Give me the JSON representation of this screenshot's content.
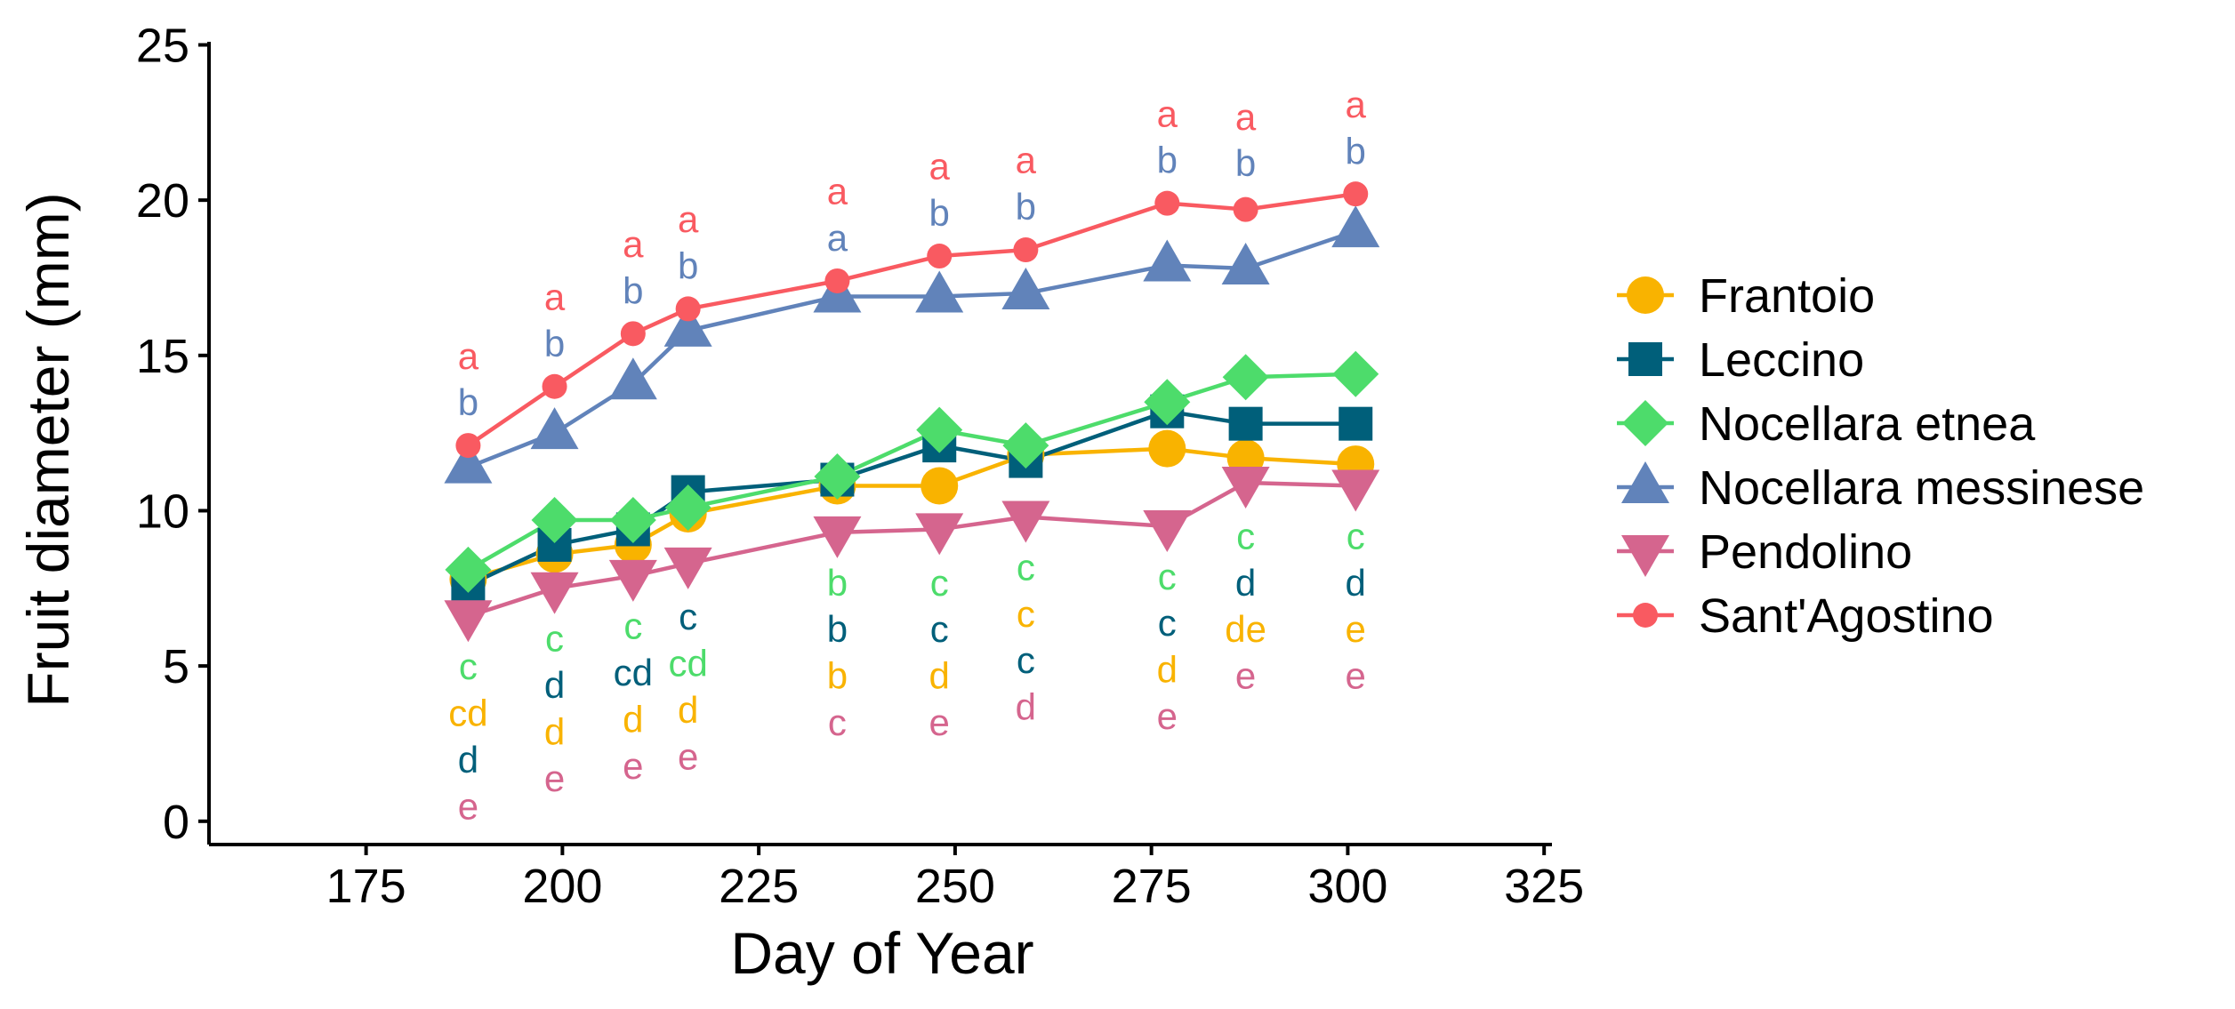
{
  "chart_data": {
    "type": "line",
    "xlabel": "Day of Year",
    "ylabel": "Fruit diameter (mm)",
    "xlim": [
      155,
      326
    ],
    "ylim": [
      -0.75,
      25.1
    ],
    "x_ticks": [
      "175",
      "200",
      "225",
      "250",
      "275",
      "300",
      "325"
    ],
    "y_ticks": [
      "0",
      "5",
      "10",
      "15",
      "20",
      "25"
    ],
    "grid": false,
    "legend_position": "right",
    "series": [
      {
        "name": "Frantoio",
        "color": "#F9B300",
        "marker": "circle",
        "x": [
          188,
          199,
          209,
          216,
          235,
          248,
          259,
          277,
          287,
          301
        ],
        "y": [
          7.8,
          8.6,
          8.9,
          9.9,
          10.8,
          10.8,
          11.8,
          12.0,
          11.7,
          11.5
        ]
      },
      {
        "name": "Leccino",
        "color": "#005F7A",
        "marker": "square",
        "x": [
          188,
          199,
          209,
          216,
          235,
          248,
          259,
          277,
          287,
          301
        ],
        "y": [
          7.6,
          8.9,
          9.4,
          10.6,
          11.0,
          12.1,
          11.6,
          13.2,
          12.8,
          12.8
        ]
      },
      {
        "name": "Nocellara etnea",
        "color": "#4DDC6B",
        "marker": "diamond",
        "x": [
          188,
          199,
          209,
          216,
          235,
          248,
          259,
          277,
          287,
          301
        ],
        "y": [
          8.1,
          9.7,
          9.7,
          10.1,
          11.1,
          12.6,
          12.1,
          13.5,
          14.3,
          14.4
        ]
      },
      {
        "name": "Nocellara messinese",
        "color": "#6183BA",
        "marker": "triangle-up",
        "x": [
          188,
          199,
          209,
          216,
          235,
          248,
          259,
          277,
          287,
          301
        ],
        "y": [
          11.4,
          12.5,
          14.1,
          15.8,
          16.9,
          16.9,
          17.0,
          17.9,
          17.8,
          19.0
        ]
      },
      {
        "name": "Pendolino",
        "color": "#D5658E",
        "marker": "triangle-down",
        "x": [
          188,
          199,
          209,
          216,
          235,
          248,
          259,
          277,
          287,
          301
        ],
        "y": [
          6.6,
          7.5,
          7.9,
          8.3,
          9.3,
          9.4,
          9.8,
          9.5,
          10.9,
          10.8
        ]
      },
      {
        "name": "Sant'Agostino",
        "color": "#F95A61",
        "marker": "circle-small",
        "x": [
          188,
          199,
          209,
          216,
          235,
          248,
          259,
          277,
          287,
          301
        ],
        "y": [
          12.1,
          14.0,
          15.7,
          16.5,
          17.4,
          18.2,
          18.4,
          19.9,
          19.7,
          20.2
        ]
      }
    ],
    "annotations": [
      {
        "x": 188,
        "y": 15.0,
        "text": "a",
        "series": "Sant'Agostino"
      },
      {
        "x": 188,
        "y": 13.5,
        "text": "b",
        "series": "Nocellara messinese"
      },
      {
        "x": 188,
        "y": 5.0,
        "text": "c",
        "series": "Nocellara etnea"
      },
      {
        "x": 188,
        "y": 3.5,
        "text": "cd",
        "series": "Frantoio"
      },
      {
        "x": 188,
        "y": 2.0,
        "text": "d",
        "series": "Leccino"
      },
      {
        "x": 188,
        "y": 0.5,
        "text": "e",
        "series": "Pendolino"
      },
      {
        "x": 199,
        "y": 16.9,
        "text": "a",
        "series": "Sant'Agostino"
      },
      {
        "x": 199,
        "y": 15.4,
        "text": "b",
        "series": "Nocellara messinese"
      },
      {
        "x": 199,
        "y": 5.9,
        "text": "c",
        "series": "Nocellara etnea"
      },
      {
        "x": 199,
        "y": 4.4,
        "text": "d",
        "series": "Leccino"
      },
      {
        "x": 199,
        "y": 2.9,
        "text": "d",
        "series": "Frantoio"
      },
      {
        "x": 199,
        "y": 1.4,
        "text": "e",
        "series": "Pendolino"
      },
      {
        "x": 209,
        "y": 18.6,
        "text": "a",
        "series": "Sant'Agostino"
      },
      {
        "x": 209,
        "y": 17.1,
        "text": "b",
        "series": "Nocellara messinese"
      },
      {
        "x": 209,
        "y": 6.3,
        "text": "c",
        "series": "Nocellara etnea"
      },
      {
        "x": 209,
        "y": 4.8,
        "text": "cd",
        "series": "Leccino"
      },
      {
        "x": 209,
        "y": 3.3,
        "text": "d",
        "series": "Frantoio"
      },
      {
        "x": 209,
        "y": 1.8,
        "text": "e",
        "series": "Pendolino"
      },
      {
        "x": 216,
        "y": 19.4,
        "text": "a",
        "series": "Sant'Agostino"
      },
      {
        "x": 216,
        "y": 17.9,
        "text": "b",
        "series": "Nocellara messinese"
      },
      {
        "x": 216,
        "y": 6.6,
        "text": "c",
        "series": "Leccino"
      },
      {
        "x": 216,
        "y": 5.1,
        "text": "cd",
        "series": "Nocellara etnea"
      },
      {
        "x": 216,
        "y": 3.6,
        "text": "d",
        "series": "Frantoio"
      },
      {
        "x": 216,
        "y": 2.1,
        "text": "e",
        "series": "Pendolino"
      },
      {
        "x": 235,
        "y": 20.3,
        "text": "a",
        "series": "Sant'Agostino"
      },
      {
        "x": 235,
        "y": 18.8,
        "text": "a",
        "series": "Nocellara messinese"
      },
      {
        "x": 235,
        "y": 7.7,
        "text": "b",
        "series": "Nocellara etnea"
      },
      {
        "x": 235,
        "y": 6.2,
        "text": "b",
        "series": "Leccino"
      },
      {
        "x": 235,
        "y": 4.7,
        "text": "b",
        "series": "Frantoio"
      },
      {
        "x": 235,
        "y": 3.2,
        "text": "c",
        "series": "Pendolino"
      },
      {
        "x": 248,
        "y": 21.1,
        "text": "a",
        "series": "Sant'Agostino"
      },
      {
        "x": 248,
        "y": 19.6,
        "text": "b",
        "series": "Nocellara messinese"
      },
      {
        "x": 248,
        "y": 7.7,
        "text": "c",
        "series": "Nocellara etnea"
      },
      {
        "x": 248,
        "y": 6.2,
        "text": "c",
        "series": "Leccino"
      },
      {
        "x": 248,
        "y": 4.7,
        "text": "d",
        "series": "Frantoio"
      },
      {
        "x": 248,
        "y": 3.2,
        "text": "e",
        "series": "Pendolino"
      },
      {
        "x": 259,
        "y": 21.3,
        "text": "a",
        "series": "Sant'Agostino"
      },
      {
        "x": 259,
        "y": 19.8,
        "text": "b",
        "series": "Nocellara messinese"
      },
      {
        "x": 259,
        "y": 8.2,
        "text": "c",
        "series": "Nocellara etnea"
      },
      {
        "x": 259,
        "y": 6.7,
        "text": "c",
        "series": "Frantoio"
      },
      {
        "x": 259,
        "y": 5.2,
        "text": "c",
        "series": "Leccino"
      },
      {
        "x": 259,
        "y": 3.7,
        "text": "d",
        "series": "Pendolino"
      },
      {
        "x": 277,
        "y": 22.8,
        "text": "a",
        "series": "Sant'Agostino"
      },
      {
        "x": 277,
        "y": 21.3,
        "text": "b",
        "series": "Nocellara messinese"
      },
      {
        "x": 277,
        "y": 7.9,
        "text": "c",
        "series": "Nocellara etnea"
      },
      {
        "x": 277,
        "y": 6.4,
        "text": "c",
        "series": "Leccino"
      },
      {
        "x": 277,
        "y": 4.9,
        "text": "d",
        "series": "Frantoio"
      },
      {
        "x": 277,
        "y": 3.4,
        "text": "e",
        "series": "Pendolino"
      },
      {
        "x": 287,
        "y": 22.7,
        "text": "a",
        "series": "Sant'Agostino"
      },
      {
        "x": 287,
        "y": 21.2,
        "text": "b",
        "series": "Nocellara messinese"
      },
      {
        "x": 287,
        "y": 9.2,
        "text": "c",
        "series": "Nocellara etnea"
      },
      {
        "x": 287,
        "y": 7.7,
        "text": "d",
        "series": "Leccino"
      },
      {
        "x": 287,
        "y": 6.2,
        "text": "de",
        "series": "Frantoio"
      },
      {
        "x": 287,
        "y": 4.7,
        "text": "e",
        "series": "Pendolino"
      },
      {
        "x": 301,
        "y": 23.1,
        "text": "a",
        "series": "Sant'Agostino"
      },
      {
        "x": 301,
        "y": 21.6,
        "text": "b",
        "series": "Nocellara messinese"
      },
      {
        "x": 301,
        "y": 9.2,
        "text": "c",
        "series": "Nocellara etnea"
      },
      {
        "x": 301,
        "y": 7.7,
        "text": "d",
        "series": "Leccino"
      },
      {
        "x": 301,
        "y": 6.2,
        "text": "e",
        "series": "Frantoio"
      },
      {
        "x": 301,
        "y": 4.7,
        "text": "e",
        "series": "Pendolino"
      }
    ]
  }
}
